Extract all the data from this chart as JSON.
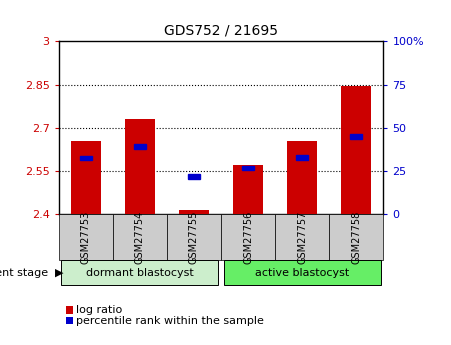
{
  "title": "GDS752 / 21695",
  "samples": [
    "GSM27753",
    "GSM27754",
    "GSM27755",
    "GSM27756",
    "GSM27757",
    "GSM27758"
  ],
  "bar_bottoms": [
    2.4,
    2.4,
    2.4,
    2.4,
    2.4,
    2.4
  ],
  "bar_tops": [
    2.655,
    2.73,
    2.413,
    2.57,
    2.655,
    2.845
  ],
  "blue_y": [
    2.595,
    2.635,
    2.53,
    2.56,
    2.597,
    2.67
  ],
  "ylim_left": [
    2.4,
    3.0
  ],
  "ylim_right": [
    0,
    100
  ],
  "yticks_left": [
    2.4,
    2.55,
    2.7,
    2.85,
    3.0
  ],
  "yticks_right": [
    0,
    25,
    50,
    75,
    100
  ],
  "ytick_labels_left": [
    "2.4",
    "2.55",
    "2.7",
    "2.85",
    "3"
  ],
  "ytick_labels_right": [
    "0",
    "25",
    "50",
    "75",
    "100%"
  ],
  "hlines": [
    2.55,
    2.7,
    2.85
  ],
  "bar_color": "#cc0000",
  "blue_color": "#0000cc",
  "left_yaxis_color": "#cc0000",
  "right_yaxis_color": "#0000cc",
  "group1_label": "dormant blastocyst",
  "group2_label": "active blastocyst",
  "group1_color": "#cceecc",
  "group2_color": "#66ee66",
  "legend_red": "log ratio",
  "legend_blue": "percentile rank within the sample",
  "tick_bg_color": "#cccccc",
  "bar_width": 0.55,
  "xlim": [
    -0.5,
    5.5
  ]
}
